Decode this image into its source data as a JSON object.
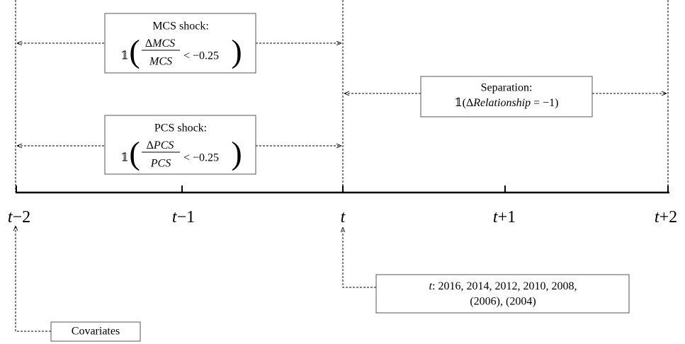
{
  "shocks": [
    {
      "title": "MCS shock:",
      "indicator": "𝟙",
      "open": "(",
      "numerator_symbol": "Δ",
      "numerator": "MCS",
      "denominator": "MCS",
      "relation": "< −0.25",
      "close": ")"
    },
    {
      "title": "PCS shock:",
      "indicator": "𝟙",
      "open": "(",
      "numerator_symbol": "Δ",
      "numerator": "PCS",
      "denominator": "PCS",
      "relation": "< −0.25",
      "close": ")"
    }
  ],
  "separation": {
    "title": "Separation:",
    "prefix": "𝟙(Δ",
    "variable": "Relationship",
    "suffix": " = −1)"
  },
  "timeline": {
    "ticks": [
      {
        "variable": "t",
        "offset": "−2"
      },
      {
        "variable": "t",
        "offset": "−1"
      },
      {
        "variable": "t"
      },
      {
        "variable": "t",
        "offset": "+1"
      },
      {
        "variable": "t",
        "offset": "+2"
      }
    ]
  },
  "note": {
    "variable": "t",
    "line1": ": 2016, 2014, 2012, 2010, 2008,",
    "line2": "(2006), (2004)"
  },
  "covariates": "Covariates"
}
